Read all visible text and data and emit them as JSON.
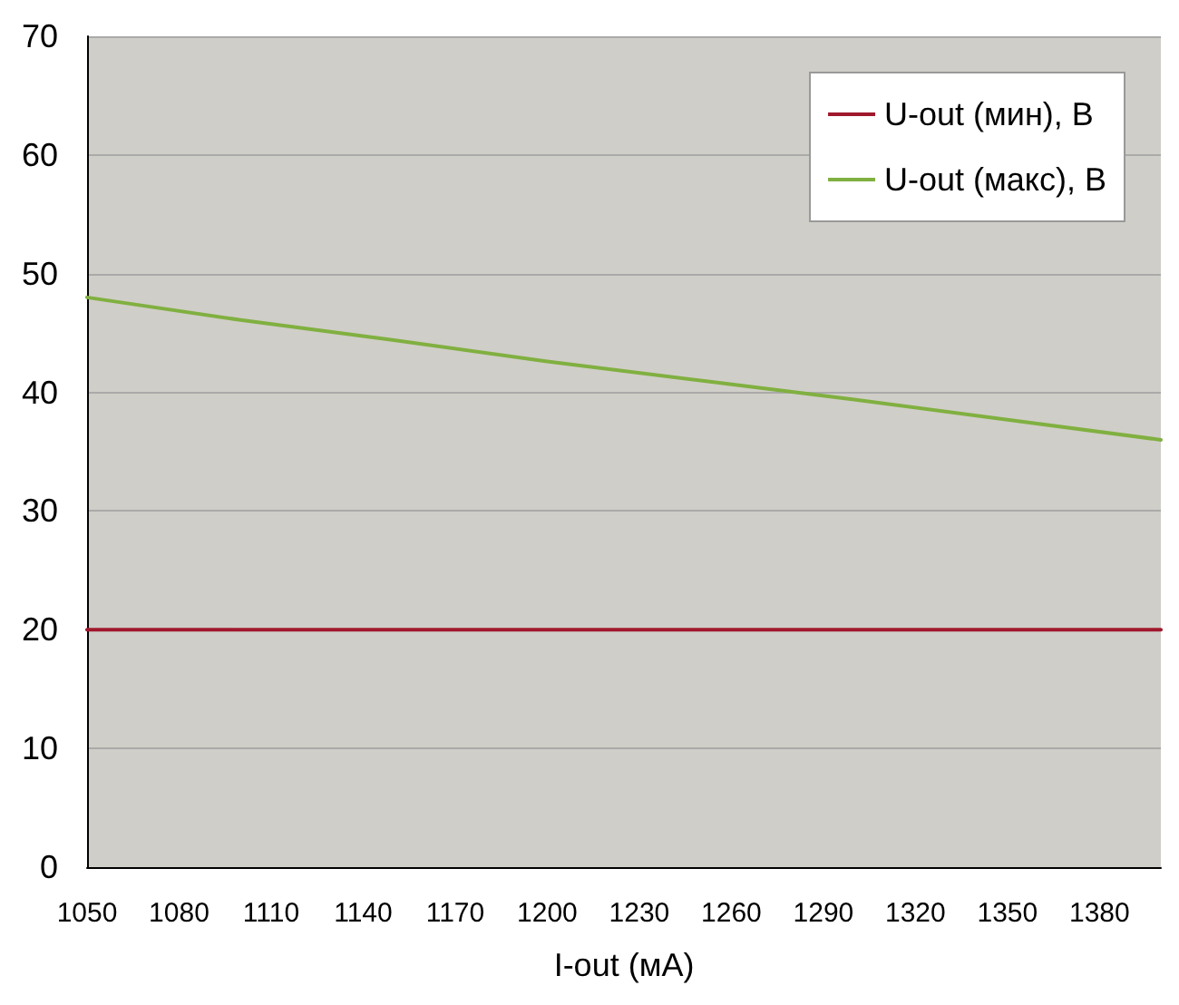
{
  "chart_data": {
    "type": "line",
    "xlabel": "I-out (мА)",
    "x": [
      1050,
      1100,
      1150,
      1200,
      1250,
      1300,
      1350,
      1400
    ],
    "series": [
      {
        "name": "U-out (мин), В",
        "color": "#a0182c",
        "values": [
          20,
          20,
          20,
          20,
          20,
          20,
          20,
          20
        ]
      },
      {
        "name": "U-out (макс), В",
        "color": "#80b040",
        "values": [
          48,
          46.1,
          44.4,
          42.6,
          41,
          39.4,
          37.7,
          36
        ]
      }
    ],
    "xlim": [
      1050,
      1400
    ],
    "xticks": [
      1050,
      1080,
      1110,
      1140,
      1170,
      1200,
      1230,
      1260,
      1290,
      1320,
      1350,
      1380
    ],
    "ylim": [
      0,
      70
    ],
    "yticks": [
      0,
      10,
      20,
      30,
      40,
      50,
      60,
      70
    ],
    "grid": "y",
    "legend": "top right",
    "marker": "none",
    "line_style": "solid"
  }
}
